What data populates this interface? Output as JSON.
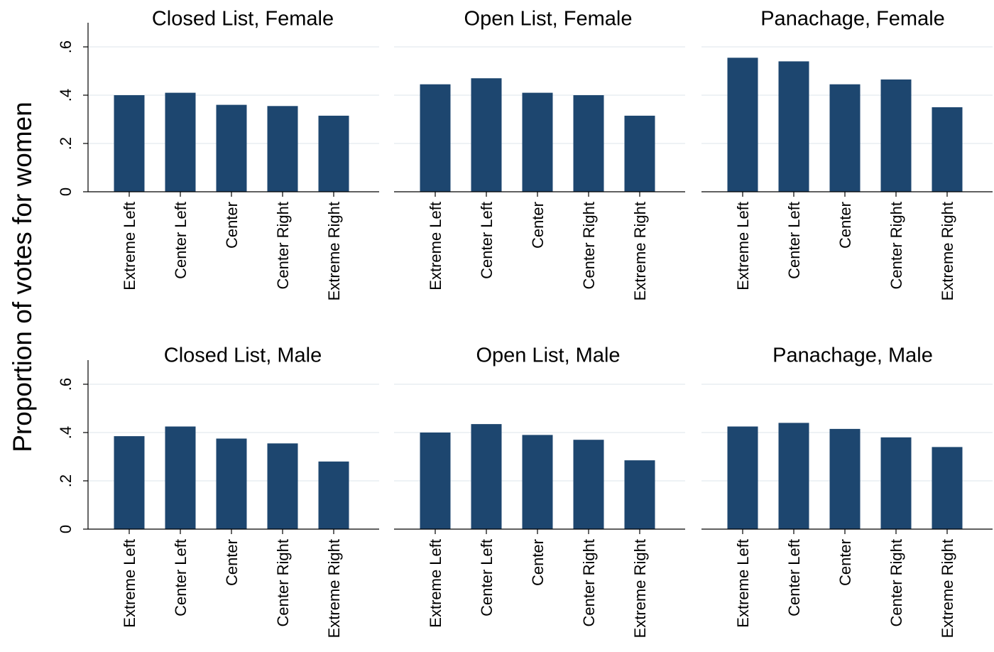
{
  "chart_data": {
    "type": "bar",
    "ylabel": "Proportion of votes for women",
    "ylim": [
      0,
      0.7
    ],
    "yticks": [
      0,
      0.2,
      0.4,
      0.6
    ],
    "ytick_labels": [
      "0",
      ".2",
      ".4",
      ".6"
    ],
    "grid": true,
    "bar_color": "#1d466f",
    "categories": [
      "Extreme Left",
      "Center Left",
      "Center",
      "Center Right",
      "Extreme Right"
    ],
    "panels": [
      {
        "title": "Closed List, Female",
        "values": [
          0.4,
          0.41,
          0.36,
          0.355,
          0.315
        ]
      },
      {
        "title": "Open List, Female",
        "values": [
          0.445,
          0.47,
          0.41,
          0.4,
          0.315
        ]
      },
      {
        "title": "Panachage, Female",
        "values": [
          0.555,
          0.54,
          0.445,
          0.465,
          0.35
        ]
      },
      {
        "title": "Closed List, Male",
        "values": [
          0.385,
          0.425,
          0.375,
          0.355,
          0.28
        ]
      },
      {
        "title": "Open List, Male",
        "values": [
          0.4,
          0.435,
          0.39,
          0.37,
          0.285
        ]
      },
      {
        "title": "Panachage, Male",
        "values": [
          0.425,
          0.44,
          0.415,
          0.38,
          0.34
        ]
      }
    ]
  }
}
